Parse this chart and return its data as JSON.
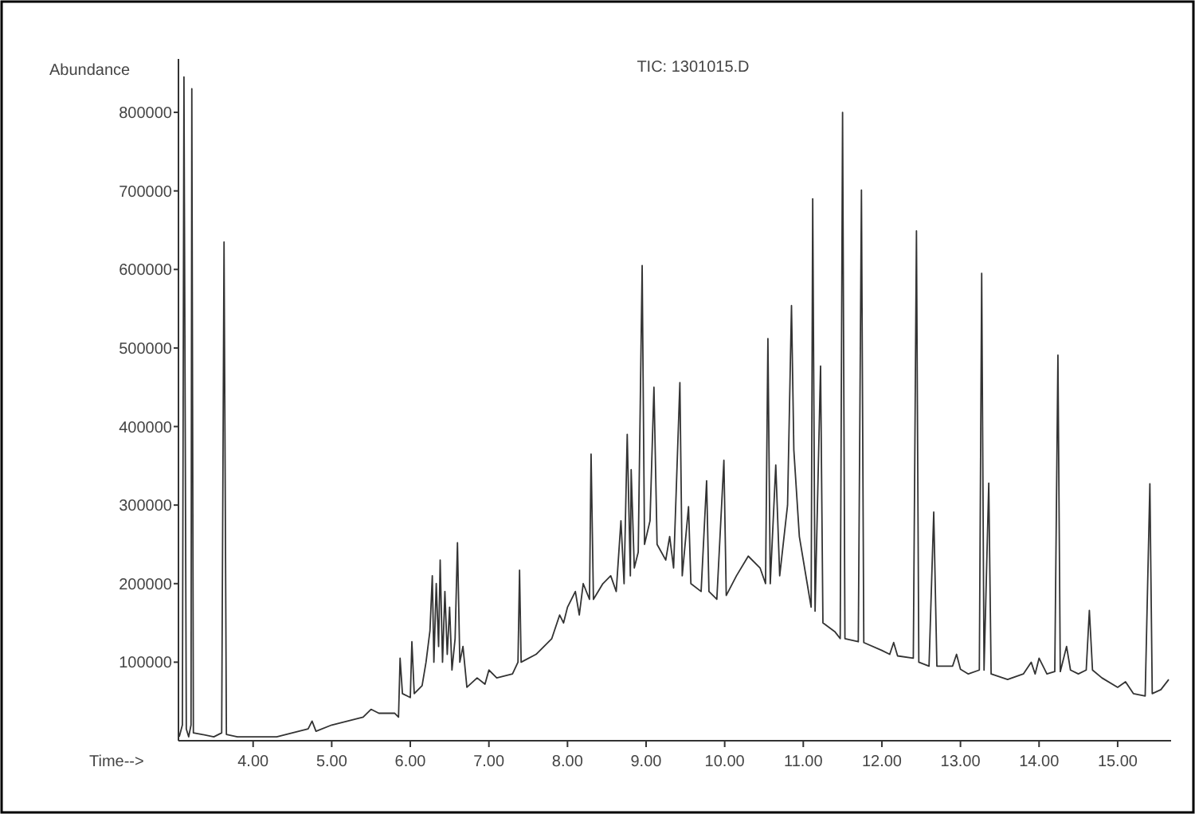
{
  "chart_data": {
    "type": "line",
    "title": "TIC: 1301015.D",
    "xlabel": "Time-->",
    "ylabel": "Abundance",
    "xlim": [
      3.05,
      15.68
    ],
    "ylim": [
      0,
      868000
    ],
    "xticks": [
      {
        "value": 4,
        "label": "4.00"
      },
      {
        "value": 5,
        "label": "5.00"
      },
      {
        "value": 6,
        "label": "6.00"
      },
      {
        "value": 7,
        "label": "7.00"
      },
      {
        "value": 8,
        "label": "8.00"
      },
      {
        "value": 9,
        "label": "9.00"
      },
      {
        "value": 10,
        "label": "10.00"
      },
      {
        "value": 11,
        "label": "11.00"
      },
      {
        "value": 12,
        "label": "12.00"
      },
      {
        "value": 13,
        "label": "13.00"
      },
      {
        "value": 14,
        "label": "14.00"
      },
      {
        "value": 15,
        "label": "15.00"
      }
    ],
    "yticks": [
      100000,
      200000,
      300000,
      400000,
      500000,
      600000,
      700000,
      800000
    ],
    "grid": false,
    "marker": "none",
    "line_style": "solid",
    "series": [
      {
        "color": "#333333",
        "x": [
          3.06,
          3.1,
          3.12,
          3.15,
          3.18,
          3.21,
          3.22,
          3.24,
          3.35,
          3.5,
          3.6,
          3.63,
          3.66,
          3.8,
          4.0,
          4.3,
          4.5,
          4.7,
          4.75,
          4.8,
          5.0,
          5.2,
          5.4,
          5.5,
          5.6,
          5.8,
          5.85,
          5.87,
          5.9,
          6.0,
          6.02,
          6.05,
          6.15,
          6.2,
          6.25,
          6.28,
          6.3,
          6.33,
          6.36,
          6.38,
          6.41,
          6.44,
          6.47,
          6.5,
          6.53,
          6.57,
          6.6,
          6.63,
          6.67,
          6.72,
          6.85,
          6.95,
          7.0,
          7.1,
          7.3,
          7.37,
          7.39,
          7.41,
          7.6,
          7.8,
          7.9,
          7.95,
          8.0,
          8.1,
          8.15,
          8.2,
          8.28,
          8.3,
          8.33,
          8.45,
          8.55,
          8.62,
          8.68,
          8.72,
          8.76,
          8.8,
          8.81,
          8.85,
          8.9,
          8.95,
          8.98,
          9.05,
          9.1,
          9.14,
          9.25,
          9.3,
          9.35,
          9.43,
          9.46,
          9.54,
          9.57,
          9.7,
          9.77,
          9.8,
          9.9,
          9.99,
          10.02,
          10.15,
          10.3,
          10.45,
          10.52,
          10.55,
          10.58,
          10.65,
          10.7,
          10.8,
          10.85,
          10.88,
          10.95,
          11.05,
          11.1,
          11.12,
          11.15,
          11.22,
          11.25,
          11.4,
          11.47,
          11.5,
          11.53,
          11.7,
          11.74,
          11.77,
          12.0,
          12.1,
          12.15,
          12.2,
          12.4,
          12.44,
          12.47,
          12.6,
          12.66,
          12.7,
          12.9,
          12.95,
          13.0,
          13.1,
          13.24,
          13.27,
          13.3,
          13.36,
          13.39,
          13.6,
          13.8,
          13.9,
          13.95,
          14.0,
          14.1,
          14.2,
          14.24,
          14.27,
          14.35,
          14.4,
          14.5,
          14.6,
          14.64,
          14.68,
          14.8,
          15.0,
          15.1,
          15.2,
          15.35,
          15.41,
          15.44,
          15.55,
          15.65
        ],
        "values": [
          5000,
          20000,
          845000,
          15000,
          5000,
          20000,
          830000,
          10000,
          8000,
          5000,
          10000,
          635000,
          8000,
          5000,
          5000,
          5000,
          10000,
          15000,
          25000,
          12000,
          20000,
          25000,
          30000,
          40000,
          35000,
          35000,
          30000,
          105000,
          60000,
          55000,
          126000,
          60000,
          70000,
          100000,
          140000,
          210000,
          100000,
          200000,
          120000,
          230000,
          100000,
          190000,
          110000,
          170000,
          90000,
          130000,
          252000,
          100000,
          120000,
          68000,
          80000,
          72000,
          90000,
          80000,
          85000,
          100000,
          217000,
          100000,
          110000,
          130000,
          160000,
          150000,
          170000,
          190000,
          160000,
          200000,
          180000,
          365000,
          180000,
          200000,
          210000,
          190000,
          280000,
          200000,
          390000,
          210000,
          345000,
          220000,
          240000,
          605000,
          250000,
          280000,
          450000,
          250000,
          230000,
          260000,
          220000,
          456000,
          210000,
          298000,
          200000,
          190000,
          331000,
          190000,
          180000,
          357000,
          185000,
          210000,
          235000,
          220000,
          200000,
          512000,
          200000,
          351000,
          210000,
          300000,
          554000,
          370000,
          260000,
          200000,
          170000,
          690000,
          165000,
          477000,
          150000,
          139000,
          130000,
          800000,
          130000,
          126000,
          701000,
          125000,
          115000,
          110000,
          125000,
          108000,
          105000,
          649000,
          100000,
          95000,
          291000,
          95000,
          95000,
          110000,
          91000,
          85000,
          90000,
          595000,
          90000,
          328000,
          85000,
          78000,
          85000,
          100000,
          85000,
          105000,
          85000,
          88000,
          491000,
          88000,
          120000,
          90000,
          85000,
          90000,
          166000,
          90000,
          80000,
          68000,
          75000,
          60000,
          57000,
          327000,
          60000,
          65000,
          78000
        ]
      }
    ]
  }
}
